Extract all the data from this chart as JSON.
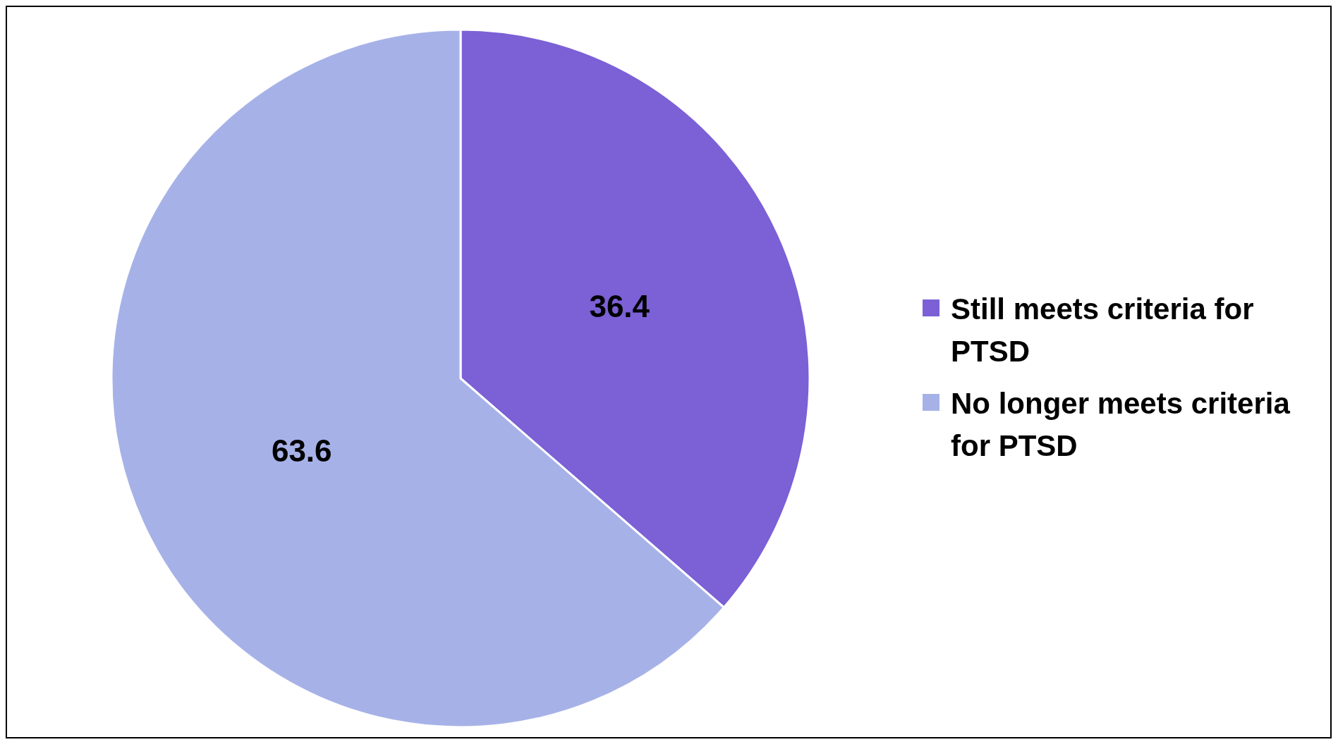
{
  "chart_data": {
    "type": "pie",
    "categories": [
      "Still meets criteria for PTSD",
      "No longer meets criteria for PTSD"
    ],
    "values": [
      36.4,
      63.6
    ],
    "colors": [
      "#7b60d6",
      "#a6b2e7"
    ],
    "data_labels": true,
    "legend": "right"
  }
}
